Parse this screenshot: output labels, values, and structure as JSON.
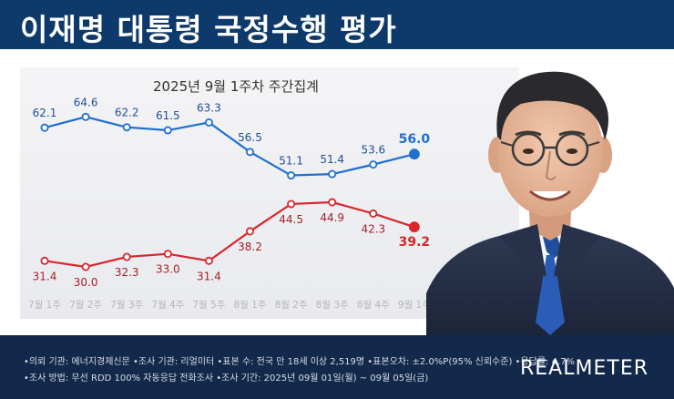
{
  "header": {
    "title": "이재명 대통령 국정수행 평가"
  },
  "chart_data": {
    "type": "line",
    "title": "2025년 9월 1주차 주간집계",
    "categories": [
      "7월 1주",
      "7월 2주",
      "7월 3주",
      "7월 4주",
      "7월 5주",
      "8월 1주",
      "8월 2주",
      "8월 3주",
      "8월 4주",
      "9월 1주"
    ],
    "series": [
      {
        "values": [
          62.1,
          64.6,
          62.2,
          61.5,
          63.3,
          56.5,
          51.1,
          51.4,
          53.6,
          56.0
        ],
        "labels": [
          "62.1",
          "64.6",
          "62.2",
          "61.5",
          "63.3",
          "56.5",
          "51.1",
          "51.4",
          "53.6",
          "56.0"
        ],
        "color": "#1f6fd1"
      },
      {
        "values": [
          31.4,
          30.0,
          32.3,
          33.0,
          31.4,
          38.2,
          44.5,
          44.9,
          42.3,
          39.2
        ],
        "labels": [
          "31.4",
          "30.0",
          "32.3",
          "33.0",
          "31.4",
          "38.2",
          "44.5",
          "44.9",
          "42.3",
          "39.2"
        ],
        "color": "#d9262c"
      }
    ],
    "ylim": [
      0,
      100
    ],
    "grid": false,
    "legend": "none"
  },
  "footer": {
    "line1": "•의뢰 기관: 에너지경제신문 •조사 기관: 리얼미터 •표본 수: 전국 만 18세 이상 2,519명 •표본오차: ±2.0%P(95% 신뢰수준) •응답률: 4.7%",
    "line2": "•조사 방법: 무선 RDD 100% 자동응답 전화조사 •조사 기간: 2025년 09월 01일(월) ~ 09월 05일(금)",
    "brand": "REALMETER"
  }
}
